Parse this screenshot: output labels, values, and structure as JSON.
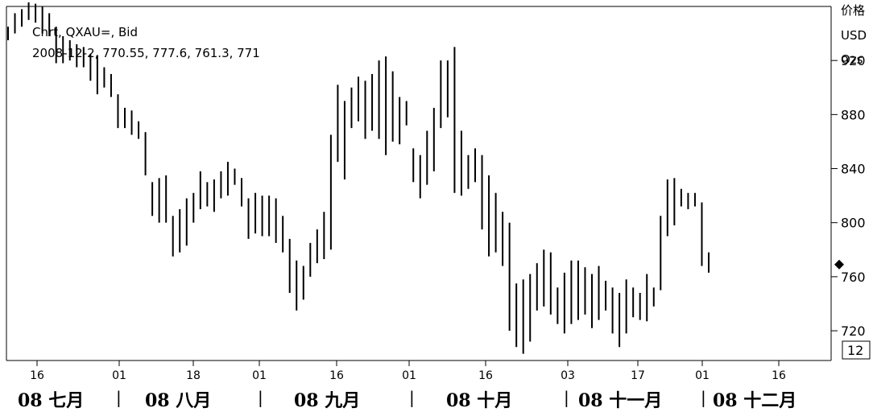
{
  "legend": {
    "series_label": "Chrt, QXAU=, Bid",
    "ohlc_readout": "2008-12-2, 770.55, 777.6, 761.3, 771"
  },
  "axis": {
    "y_header": [
      "价格",
      "USD",
      "Ozs"
    ],
    "y_ticks": [
      920,
      880,
      840,
      800,
      760,
      720
    ],
    "y_range": [
      698,
      960
    ],
    "current_value_marker": 769,
    "bottom_box_label": "12"
  },
  "x_axis": {
    "day_ticks": [
      "16",
      "01",
      "18",
      "01",
      "16",
      "01",
      "16",
      "03",
      "17",
      "01",
      "16"
    ],
    "months": [
      "08 七月",
      "08 八月",
      "08 九月",
      "08 十月",
      "08 十一月",
      "08 十二月"
    ]
  },
  "chart_data": {
    "type": "ohlc",
    "title": "",
    "ylabel": "价格 USD Ozs",
    "ylim": [
      698,
      960
    ],
    "series": [
      {
        "name": "QXAU=, Bid",
        "values": [
          {
            "h": 945,
            "l": 935
          },
          {
            "h": 955,
            "l": 940
          },
          {
            "h": 958,
            "l": 945
          },
          {
            "h": 963,
            "l": 950
          },
          {
            "h": 962,
            "l": 948
          },
          {
            "h": 960,
            "l": 940
          },
          {
            "h": 955,
            "l": 938
          },
          {
            "h": 945,
            "l": 918
          },
          {
            "h": 938,
            "l": 918
          },
          {
            "h": 935,
            "l": 920
          },
          {
            "h": 932,
            "l": 915
          },
          {
            "h": 930,
            "l": 915
          },
          {
            "h": 925,
            "l": 905
          },
          {
            "h": 924,
            "l": 895
          },
          {
            "h": 915,
            "l": 900
          },
          {
            "h": 910,
            "l": 893
          },
          {
            "h": 895,
            "l": 870
          },
          {
            "h": 885,
            "l": 870
          },
          {
            "h": 883,
            "l": 865
          },
          {
            "h": 875,
            "l": 862
          },
          {
            "h": 867,
            "l": 835
          },
          {
            "h": 830,
            "l": 805
          },
          {
            "h": 833,
            "l": 800
          },
          {
            "h": 835,
            "l": 800
          },
          {
            "h": 805,
            "l": 775
          },
          {
            "h": 810,
            "l": 778
          },
          {
            "h": 818,
            "l": 783
          },
          {
            "h": 822,
            "l": 800
          },
          {
            "h": 838,
            "l": 810
          },
          {
            "h": 830,
            "l": 812
          },
          {
            "h": 832,
            "l": 808
          },
          {
            "h": 838,
            "l": 818
          },
          {
            "h": 845,
            "l": 820
          },
          {
            "h": 840,
            "l": 828
          },
          {
            "h": 833,
            "l": 812
          },
          {
            "h": 818,
            "l": 788
          },
          {
            "h": 822,
            "l": 792
          },
          {
            "h": 820,
            "l": 790
          },
          {
            "h": 820,
            "l": 790
          },
          {
            "h": 818,
            "l": 785
          },
          {
            "h": 805,
            "l": 778
          },
          {
            "h": 788,
            "l": 748
          },
          {
            "h": 772,
            "l": 735
          },
          {
            "h": 768,
            "l": 743
          },
          {
            "h": 785,
            "l": 760
          },
          {
            "h": 795,
            "l": 770
          },
          {
            "h": 808,
            "l": 773
          },
          {
            "h": 865,
            "l": 780
          },
          {
            "h": 902,
            "l": 845
          },
          {
            "h": 890,
            "l": 832
          },
          {
            "h": 900,
            "l": 870
          },
          {
            "h": 908,
            "l": 875
          },
          {
            "h": 905,
            "l": 862
          },
          {
            "h": 910,
            "l": 868
          },
          {
            "h": 920,
            "l": 862
          },
          {
            "h": 923,
            "l": 850
          },
          {
            "h": 912,
            "l": 860
          },
          {
            "h": 893,
            "l": 858
          },
          {
            "h": 890,
            "l": 872
          },
          {
            "h": 855,
            "l": 830
          },
          {
            "h": 850,
            "l": 818
          },
          {
            "h": 868,
            "l": 828
          },
          {
            "h": 885,
            "l": 838
          },
          {
            "h": 920,
            "l": 870
          },
          {
            "h": 920,
            "l": 878
          },
          {
            "h": 930,
            "l": 822
          },
          {
            "h": 868,
            "l": 820
          },
          {
            "h": 850,
            "l": 825
          },
          {
            "h": 855,
            "l": 830
          },
          {
            "h": 850,
            "l": 795
          },
          {
            "h": 835,
            "l": 775
          },
          {
            "h": 822,
            "l": 778
          },
          {
            "h": 808,
            "l": 768
          },
          {
            "h": 800,
            "l": 720
          },
          {
            "h": 755,
            "l": 708
          },
          {
            "h": 758,
            "l": 703
          },
          {
            "h": 762,
            "l": 712
          },
          {
            "h": 770,
            "l": 735
          },
          {
            "h": 780,
            "l": 738
          },
          {
            "h": 778,
            "l": 732
          },
          {
            "h": 752,
            "l": 725
          },
          {
            "h": 763,
            "l": 718
          },
          {
            "h": 772,
            "l": 725
          },
          {
            "h": 772,
            "l": 728
          },
          {
            "h": 767,
            "l": 732
          },
          {
            "h": 762,
            "l": 722
          },
          {
            "h": 768,
            "l": 728
          },
          {
            "h": 757,
            "l": 735
          },
          {
            "h": 752,
            "l": 718
          },
          {
            "h": 748,
            "l": 708
          },
          {
            "h": 758,
            "l": 718
          },
          {
            "h": 752,
            "l": 730
          },
          {
            "h": 748,
            "l": 728
          },
          {
            "h": 762,
            "l": 727
          },
          {
            "h": 752,
            "l": 738
          },
          {
            "h": 805,
            "l": 750
          },
          {
            "h": 832,
            "l": 790
          },
          {
            "h": 833,
            "l": 798
          },
          {
            "h": 825,
            "l": 812
          },
          {
            "h": 822,
            "l": 810
          },
          {
            "h": 822,
            "l": 812
          },
          {
            "h": 815,
            "l": 768
          },
          {
            "h": 778,
            "l": 763
          }
        ]
      }
    ]
  }
}
